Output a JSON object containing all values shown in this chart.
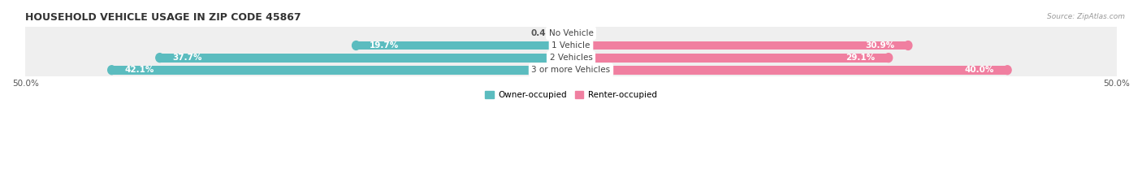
{
  "title": "HOUSEHOLD VEHICLE USAGE IN ZIP CODE 45867",
  "source": "Source: ZipAtlas.com",
  "categories": [
    "No Vehicle",
    "1 Vehicle",
    "2 Vehicles",
    "3 or more Vehicles"
  ],
  "owner_values": [
    0.49,
    19.7,
    37.7,
    42.1
  ],
  "renter_values": [
    0.0,
    30.9,
    29.1,
    40.0
  ],
  "owner_color": "#5bbcbf",
  "renter_color": "#f07fa0",
  "row_bg_color": "#efefef",
  "row_bg_color_alt": "#e8e8e8",
  "x_max": 50.0,
  "x_min": -50.0,
  "bar_height": 0.72,
  "figsize": [
    14.06,
    2.34
  ],
  "dpi": 100
}
